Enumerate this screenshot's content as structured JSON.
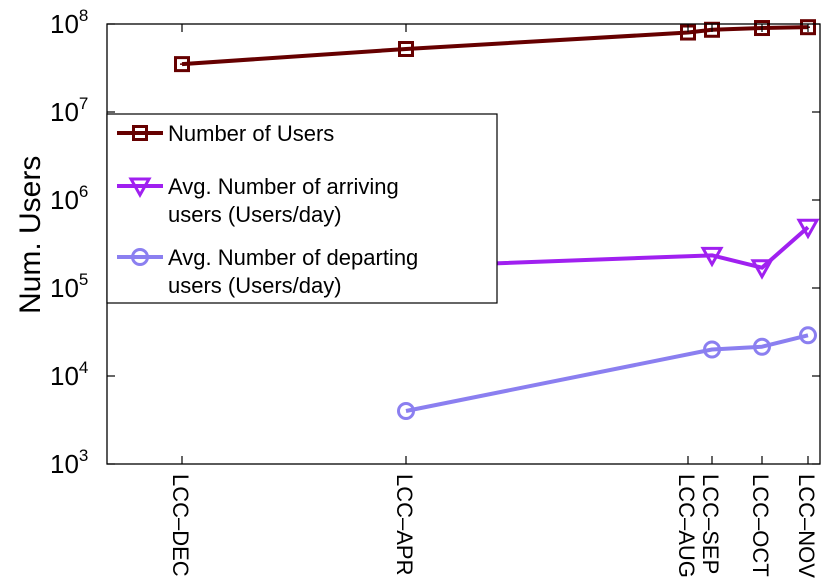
{
  "chart_data": {
    "type": "line",
    "title": "",
    "xlabel": "",
    "ylabel": "Num. Users",
    "y_scale": "log",
    "ylim": [
      1000,
      100000000
    ],
    "y_ticks": [
      {
        "value": 1000,
        "base": "10",
        "exp": "3"
      },
      {
        "value": 10000,
        "base": "10",
        "exp": "4"
      },
      {
        "value": 100000,
        "base": "10",
        "exp": "5"
      },
      {
        "value": 1000000,
        "base": "10",
        "exp": "6"
      },
      {
        "value": 10000000,
        "base": "10",
        "exp": "7"
      },
      {
        "value": 100000000,
        "base": "10",
        "exp": "8"
      }
    ],
    "x_tick_labels": [
      "LCC–DEC",
      "LCC–APR",
      "LCC–AUG",
      "LCC–SEP",
      "LCC–OCT",
      "LCC–NOV"
    ],
    "legend_position": "upper-left",
    "grid": false,
    "series": [
      {
        "name": "Number of Users",
        "legend_lines": [
          "Number of Users"
        ],
        "color": "#660000",
        "marker": "square",
        "points": [
          {
            "x": "LCC–DEC",
            "y": 35000000
          },
          {
            "x": "LCC–APR",
            "y": 52000000
          },
          {
            "x": "LCC–AUG",
            "y": 80000000
          },
          {
            "x": "LCC–SEP",
            "y": 86000000
          },
          {
            "x": "LCC–OCT",
            "y": 90000000
          },
          {
            "x": "LCC–NOV",
            "y": 92000000
          }
        ]
      },
      {
        "name": "Avg. Number of arriving users (Users/day)",
        "legend_lines": [
          "Avg. Number of arriving",
          "users (Users/day)"
        ],
        "color": "#a020f0",
        "marker": "triangle-down",
        "points": [
          {
            "x": "LCC–APR",
            "y": 175000
          },
          {
            "x": "LCC–SEP",
            "y": 235000
          },
          {
            "x": "LCC–OCT",
            "y": 170000
          },
          {
            "x": "LCC–NOV",
            "y": 490000
          }
        ]
      },
      {
        "name": "Avg. Number of departing users (Users/day)",
        "legend_lines": [
          "Avg. Number of departing",
          "users (Users/day)"
        ],
        "color": "#8b7ff0",
        "marker": "circle",
        "points": [
          {
            "x": "LCC–APR",
            "y": 4000
          },
          {
            "x": "LCC–SEP",
            "y": 20000
          },
          {
            "x": "LCC–OCT",
            "y": 21500
          },
          {
            "x": "LCC–NOV",
            "y": 29000
          }
        ]
      }
    ]
  }
}
